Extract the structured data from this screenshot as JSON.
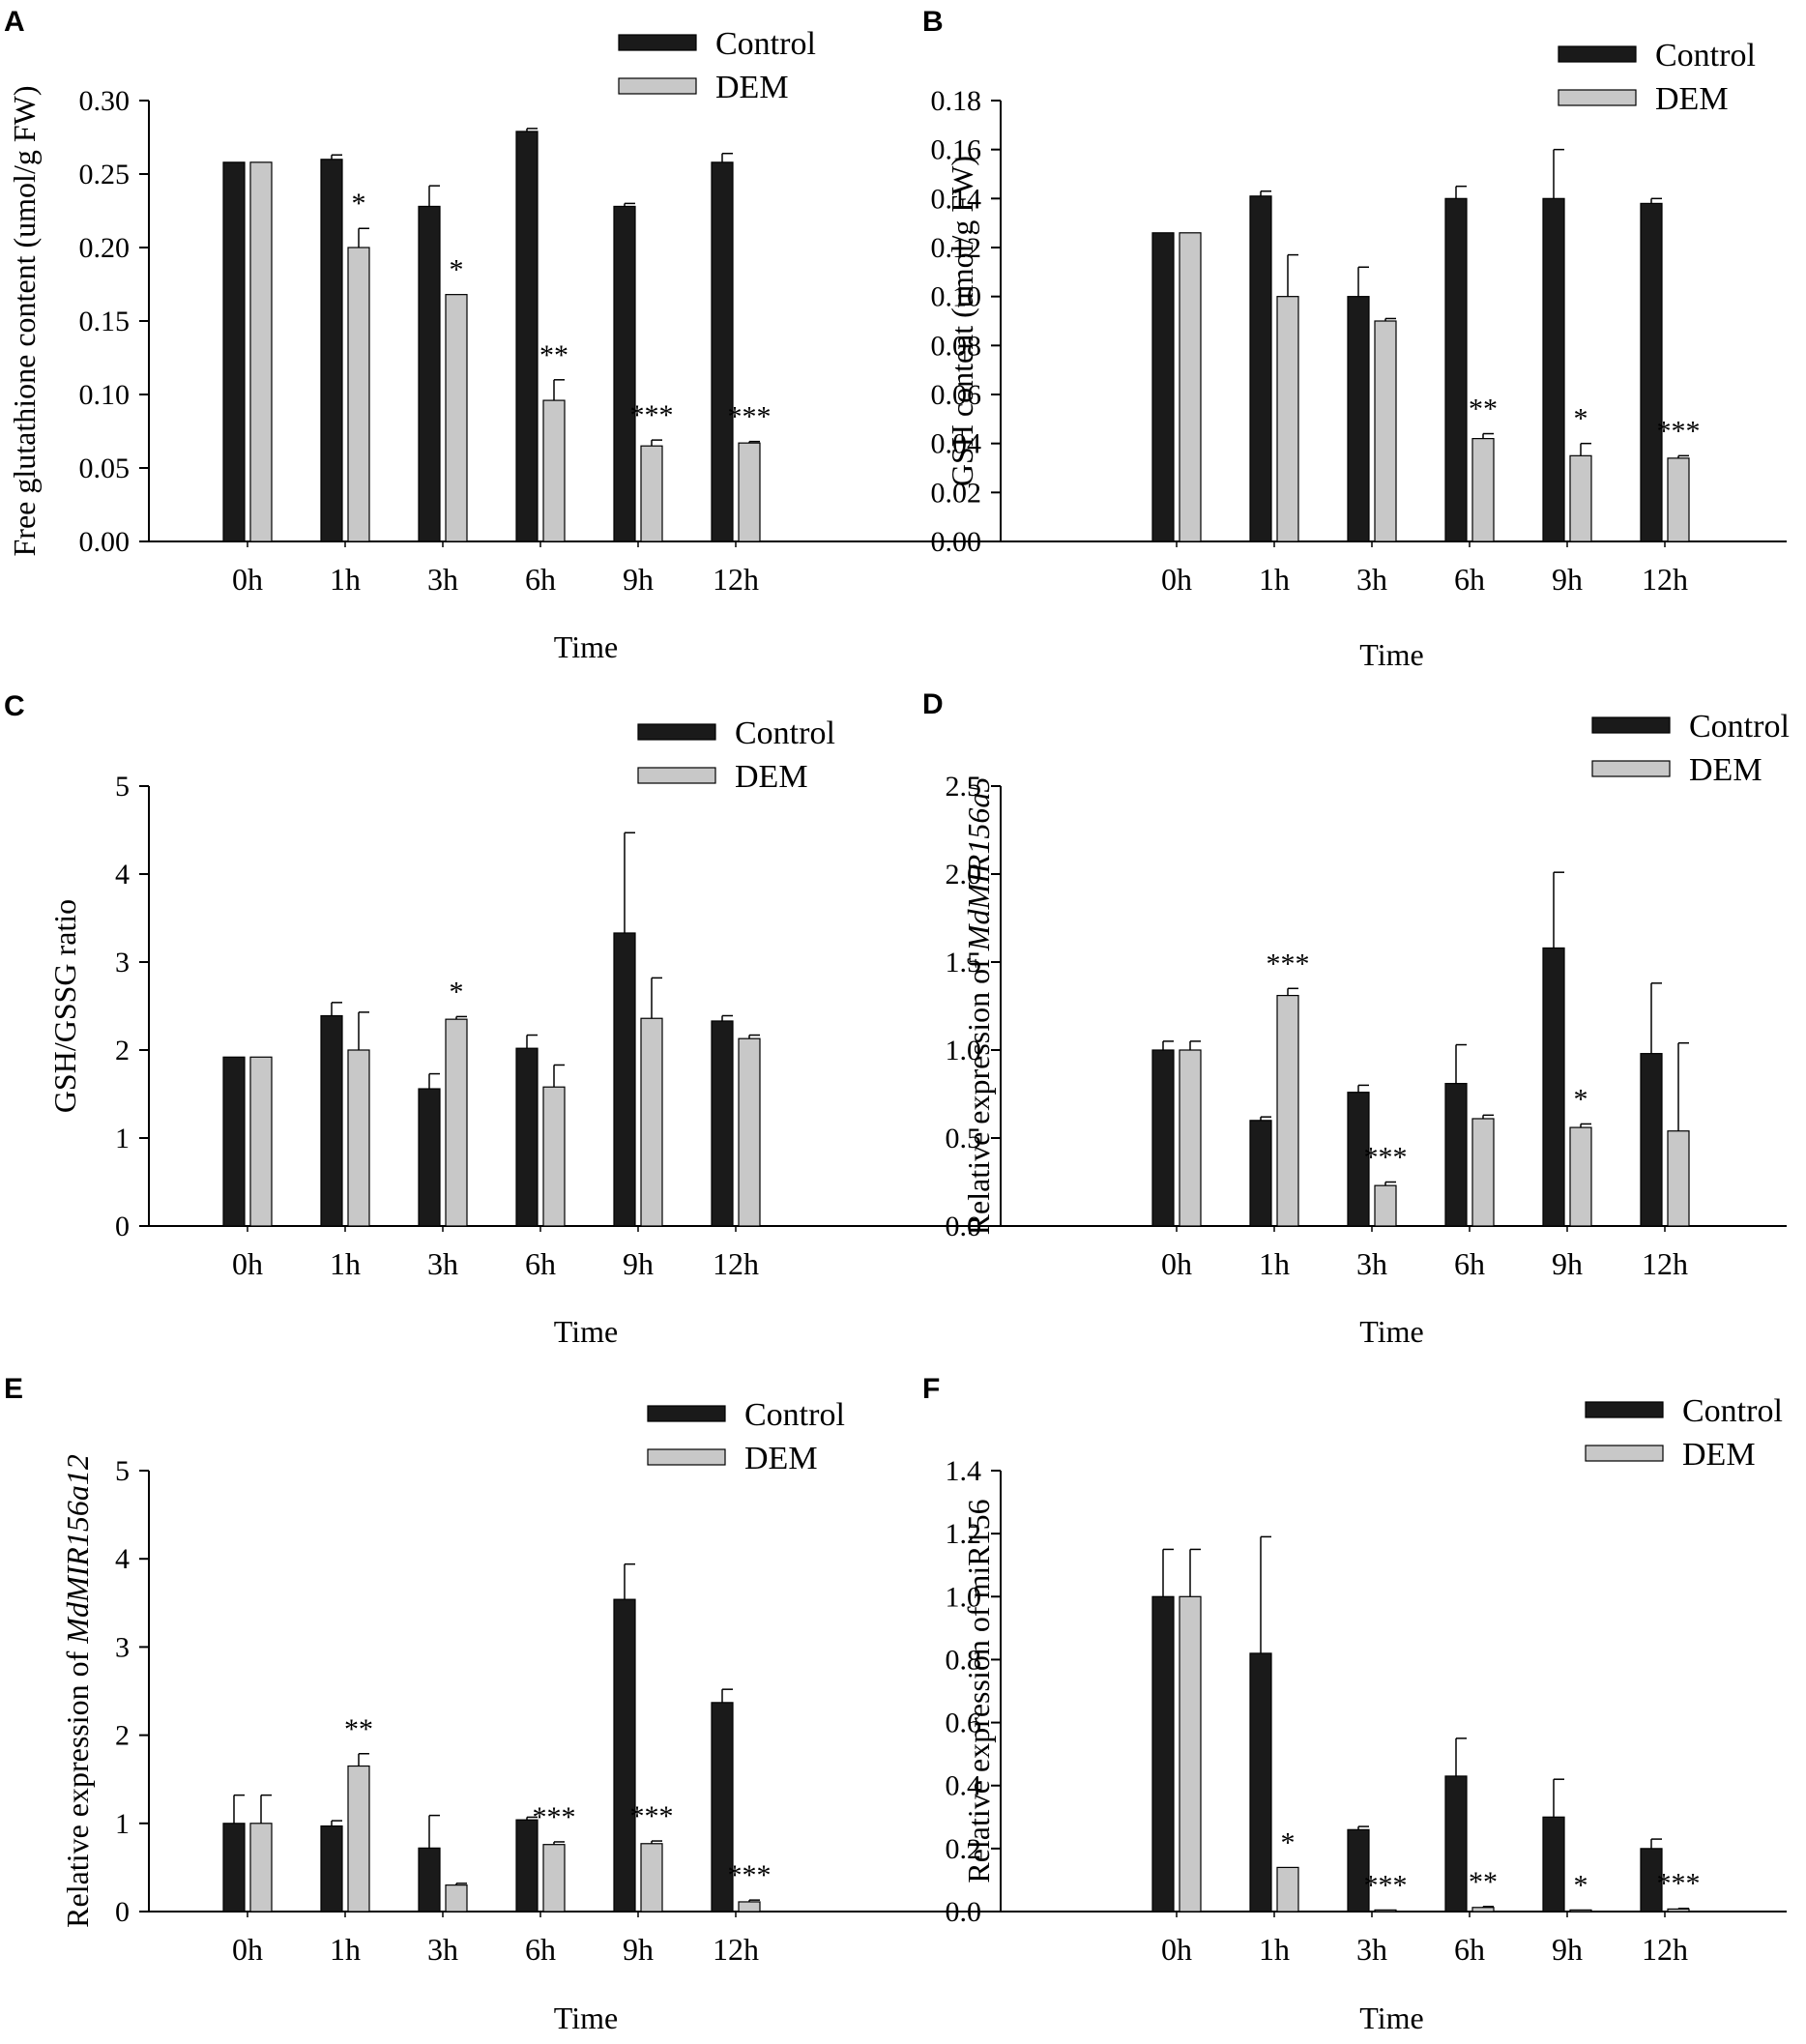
{
  "colors": {
    "control": "#1a1a1a",
    "dem": "#c8c8c8",
    "axis": "#000000"
  },
  "chart_data": [
    {
      "panel": "A",
      "type": "bar",
      "categories": [
        "0h",
        "1h",
        "3h",
        "6h",
        "9h",
        "12h"
      ],
      "xlabel": "Time",
      "ylabel": "Free glutathione content (umol/g FW)",
      "ylabel_italic": "",
      "ylim": [
        0,
        0.3
      ],
      "yticks": [
        "0.00",
        "0.05",
        "0.10",
        "0.15",
        "0.20",
        "0.25",
        "0.30"
      ],
      "legend": [
        "Control",
        "DEM"
      ],
      "series": [
        {
          "name": "Control",
          "values": [
            0.258,
            0.26,
            0.228,
            0.279,
            0.228,
            0.258
          ],
          "errors": [
            0.0,
            0.003,
            0.014,
            0.002,
            0.002,
            0.006
          ]
        },
        {
          "name": "DEM",
          "values": [
            0.258,
            0.2,
            0.168,
            0.096,
            0.065,
            0.067
          ],
          "errors": [
            0.0,
            0.013,
            0.0,
            0.014,
            0.004,
            0.001
          ]
        }
      ],
      "significance": [
        "",
        "*",
        "*",
        "**",
        "***",
        "***"
      ]
    },
    {
      "panel": "B",
      "type": "bar",
      "categories": [
        "0h",
        "1h",
        "3h",
        "6h",
        "9h",
        "12h"
      ],
      "xlabel": "Time",
      "ylabel": "GSH content (umol/g FW)",
      "ylabel_italic": "",
      "ylim": [
        0,
        0.18
      ],
      "yticks": [
        "0.00",
        "0.02",
        "0.04",
        "0.06",
        "0.08",
        "0.10",
        "0.12",
        "0.14",
        "0.16",
        "0.18"
      ],
      "legend": [
        "Control",
        "DEM"
      ],
      "series": [
        {
          "name": "Control",
          "values": [
            0.126,
            0.141,
            0.1,
            0.14,
            0.14,
            0.138
          ],
          "errors": [
            0.0,
            0.002,
            0.012,
            0.005,
            0.02,
            0.002
          ]
        },
        {
          "name": "DEM",
          "values": [
            0.126,
            0.1,
            0.09,
            0.042,
            0.035,
            0.034
          ],
          "errors": [
            0.0,
            0.017,
            0.001,
            0.002,
            0.005,
            0.001
          ]
        }
      ],
      "significance": [
        "",
        "",
        "",
        "**",
        "*",
        "***"
      ]
    },
    {
      "panel": "C",
      "type": "bar",
      "categories": [
        "0h",
        "1h",
        "3h",
        "6h",
        "9h",
        "12h"
      ],
      "xlabel": "Time",
      "ylabel": "GSH/GSSG ratio",
      "ylabel_italic": "",
      "ylim": [
        0,
        5
      ],
      "yticks": [
        "0",
        "1",
        "2",
        "3",
        "4",
        "5"
      ],
      "legend": [
        "Control",
        "DEM"
      ],
      "series": [
        {
          "name": "Control",
          "values": [
            1.92,
            2.39,
            1.56,
            2.02,
            3.33,
            2.33
          ],
          "errors": [
            0.0,
            0.15,
            0.17,
            0.15,
            1.14,
            0.06
          ]
        },
        {
          "name": "DEM",
          "values": [
            1.92,
            2.0,
            2.35,
            1.58,
            2.36,
            2.13
          ],
          "errors": [
            0.0,
            0.43,
            0.03,
            0.25,
            0.46,
            0.04
          ]
        }
      ],
      "significance": [
        "",
        "",
        "*",
        "",
        "",
        ""
      ]
    },
    {
      "panel": "D",
      "type": "bar",
      "categories": [
        "0h",
        "1h",
        "3h",
        "6h",
        "9h",
        "12h"
      ],
      "xlabel": "Time",
      "ylabel": "Relative expression of ",
      "ylabel_italic": "MdMIR156a5",
      "ylim": [
        0,
        2.5
      ],
      "yticks": [
        "0.0",
        "0.5",
        "1.0",
        "1.5",
        "2.0",
        "2.5"
      ],
      "legend": [
        "Control",
        "DEM"
      ],
      "series": [
        {
          "name": "Control",
          "values": [
            1.0,
            0.6,
            0.76,
            0.81,
            1.58,
            0.98
          ],
          "errors": [
            0.05,
            0.02,
            0.04,
            0.22,
            0.43,
            0.4
          ]
        },
        {
          "name": "DEM",
          "values": [
            1.0,
            1.31,
            0.23,
            0.61,
            0.56,
            0.54
          ],
          "errors": [
            0.05,
            0.04,
            0.02,
            0.02,
            0.02,
            0.5
          ]
        }
      ],
      "significance": [
        "",
        "***",
        "***",
        "",
        "*",
        ""
      ]
    },
    {
      "panel": "E",
      "type": "bar",
      "categories": [
        "0h",
        "1h",
        "3h",
        "6h",
        "9h",
        "12h"
      ],
      "xlabel": "Time",
      "ylabel": "Relative expression of ",
      "ylabel_italic": "MdMIR156a12",
      "ylim": [
        0,
        5
      ],
      "yticks": [
        "0",
        "1",
        "2",
        "3",
        "4",
        "5"
      ],
      "legend": [
        "Control",
        "DEM"
      ],
      "series": [
        {
          "name": "Control",
          "values": [
            1.0,
            0.97,
            0.72,
            1.04,
            3.54,
            2.37
          ],
          "errors": [
            0.32,
            0.06,
            0.37,
            0.03,
            0.4,
            0.15
          ]
        },
        {
          "name": "DEM",
          "values": [
            1.0,
            1.65,
            0.3,
            0.76,
            0.77,
            0.11
          ],
          "errors": [
            0.32,
            0.14,
            0.02,
            0.03,
            0.03,
            0.02
          ]
        }
      ],
      "significance": [
        "",
        "**",
        "",
        "***",
        "***",
        "***"
      ]
    },
    {
      "panel": "F",
      "type": "bar",
      "categories": [
        "0h",
        "1h",
        "3h",
        "6h",
        "9h",
        "12h"
      ],
      "xlabel": "Time",
      "ylabel": "Relative expression of miR156",
      "ylabel_italic": "",
      "ylim": [
        0,
        1.4
      ],
      "yticks": [
        "0.0",
        "0.2",
        "0.4",
        "0.6",
        "0.8",
        "1.0",
        "1.2",
        "1.4"
      ],
      "legend": [
        "Control",
        "DEM"
      ],
      "series": [
        {
          "name": "Control",
          "values": [
            1.0,
            0.82,
            0.26,
            0.43,
            0.3,
            0.2
          ],
          "errors": [
            0.15,
            0.37,
            0.01,
            0.12,
            0.12,
            0.03
          ]
        },
        {
          "name": "DEM",
          "values": [
            1.0,
            0.14,
            0.005,
            0.013,
            0.005,
            0.008
          ],
          "errors": [
            0.15,
            0.0,
            0.0,
            0.003,
            0.0,
            0.002
          ]
        }
      ],
      "significance": [
        "",
        "*",
        "***",
        "**",
        "*",
        "***"
      ]
    }
  ]
}
